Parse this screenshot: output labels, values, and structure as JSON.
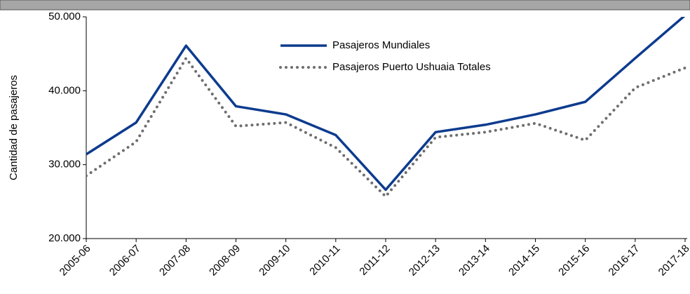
{
  "chart_data": {
    "type": "line",
    "y_label": "Cantidad de pasajeros",
    "categories": [
      "2005-06",
      "2006-07",
      "2007-08",
      "2008-09",
      "2009-10",
      "2010-11",
      "2011-12",
      "2012-13",
      "2013-14",
      "2014-15",
      "2015-16",
      "2016-17",
      "2017-18"
    ],
    "series": [
      {
        "name": "Pasajeros Mundiales",
        "color": "#0d3b8e",
        "dash": "solid",
        "values": [
          31400,
          35700,
          46100,
          37900,
          36800,
          34000,
          26600,
          34400,
          35400,
          36800,
          38500,
          44400,
          50200
        ]
      },
      {
        "name": "Pasajeros Puerto Ushuaia Totales",
        "color": "#6e6e6e",
        "dash": "dotted",
        "values": [
          28500,
          33100,
          44400,
          35200,
          35700,
          32300,
          25700,
          33700,
          34400,
          35600,
          33300,
          40400,
          43100
        ]
      }
    ],
    "ylim": [
      20000,
      50000
    ],
    "yticks": [
      {
        "value": 20000,
        "label": "20.000"
      },
      {
        "value": 30000,
        "label": "30.000"
      },
      {
        "value": 40000,
        "label": "40.000"
      },
      {
        "value": 50000,
        "label": "50.000"
      }
    ],
    "legend": "top-center"
  }
}
